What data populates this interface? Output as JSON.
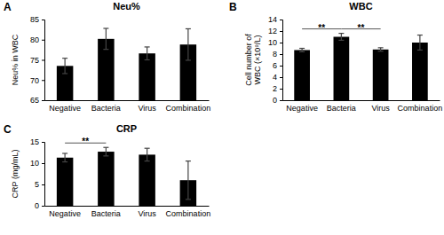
{
  "chart_data": [
    {
      "type": "bar",
      "panel": "A",
      "title": "Neu%",
      "y_label": "Neu% in WBC",
      "categories": [
        "Negative",
        "Bacteria",
        "Virus",
        "Combination"
      ],
      "values": [
        73.5,
        80.2,
        76.6,
        78.8
      ],
      "errors": [
        1.9,
        2.6,
        1.6,
        3.9
      ],
      "color": "#000000",
      "ylim": [
        65,
        85
      ],
      "yticks": [
        65,
        70,
        75,
        80,
        85
      ]
    },
    {
      "type": "bar",
      "panel": "B",
      "title": "WBC",
      "y_label": "Cell number of WBC (×10⁹/L)",
      "categories": [
        "Negative",
        "Bacteria",
        "Virus",
        "Combination"
      ],
      "values": [
        8.7,
        11.0,
        8.8,
        10.0
      ],
      "errors": [
        0.3,
        0.6,
        0.3,
        1.3
      ],
      "color": "#000000",
      "ylim": [
        0,
        14
      ],
      "yticks": [
        0,
        2,
        4,
        6,
        8,
        10,
        12,
        14
      ],
      "annotations": [
        {
          "text": "**",
          "categories": [
            "Negative",
            "Bacteria"
          ]
        },
        {
          "text": "**",
          "categories": [
            "Bacteria",
            "Virus"
          ]
        }
      ]
    },
    {
      "type": "bar",
      "panel": "C",
      "title": "CRP",
      "y_label": "CRP (mg/mL)",
      "categories": [
        "Negative",
        "Bacteria",
        "Virus",
        "Combination"
      ],
      "values": [
        11.3,
        12.7,
        12.0,
        6.0
      ],
      "errors": [
        1.0,
        1.0,
        1.5,
        4.5
      ],
      "color": "#000000",
      "ylim": [
        0,
        15
      ],
      "yticks": [
        0,
        5,
        10,
        15
      ],
      "annotations": [
        {
          "text": "**",
          "categories": [
            "Negative",
            "Bacteria"
          ]
        }
      ]
    }
  ]
}
